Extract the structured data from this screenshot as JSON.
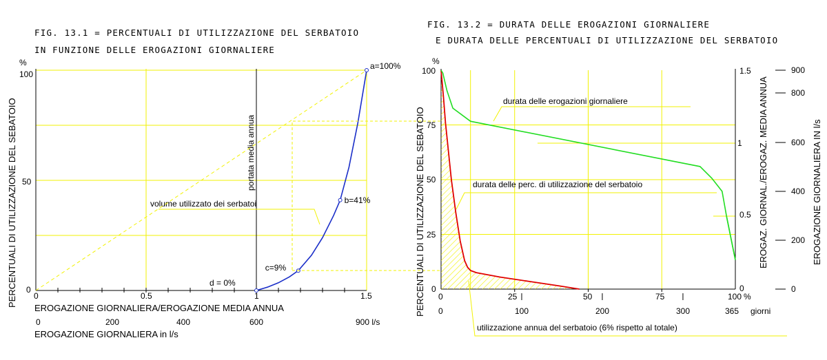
{
  "colors": {
    "grid": "#f2f200",
    "blue": "#1a2ec8",
    "red": "#e00000",
    "green": "#22dd22",
    "axis": "#000000"
  },
  "chart_data": [
    {
      "type": "line",
      "title_line1": "FIG. 13.1 = PERCENTUALI DI UTILIZZAZIONE DEL SERBATOIO",
      "title_line2": "IN FUNZIONE DELLE EROGAZIONI GIORNALIERE",
      "ylabel": "PERCENTUALI DI UTILIZZAZIONE DEL SEBATOIO",
      "y_unit": "%",
      "xlabel": "EROGAZIONE GIORNALIERA/EROGAZIONE MEDIA ANNUA",
      "xlabel2": "EROGAZIONE GIORNALIERA in l/s",
      "xlim": [
        0,
        1.5
      ],
      "ylim": [
        0,
        100
      ],
      "x_ticks": [
        "0",
        "0.5",
        "1",
        "1.5"
      ],
      "x2_ticks": [
        "0",
        "200",
        "400",
        "600",
        "900 l/s"
      ],
      "y_ticks": [
        "0",
        "50",
        "100"
      ],
      "vertical_label": "portata media annua",
      "annotation": "volume utilizzato dei serbatoi",
      "points": [
        {
          "label": "a=100%",
          "x": 1.5,
          "y": 100
        },
        {
          "label": "b=41%",
          "x": 1.38,
          "y": 41
        },
        {
          "label": "c=9%",
          "x": 1.19,
          "y": 9
        },
        {
          "label": "d = 0%",
          "x": 1.0,
          "y": 0
        }
      ],
      "series": [
        {
          "x": [
            1.0,
            1.05,
            1.1,
            1.15,
            1.19,
            1.25,
            1.3,
            1.35,
            1.38,
            1.42,
            1.46,
            1.5
          ],
          "y": [
            0,
            1.5,
            3.5,
            6.2,
            9,
            16,
            24,
            34,
            41,
            56,
            76,
            100
          ]
        },
        {
          "x": [
            0,
            1.5
          ],
          "y": [
            0,
            100
          ]
        }
      ]
    },
    {
      "type": "line",
      "title_line1": "FIG. 13.2 = DURATA DELLE EROGAZIONI GIORNALIERE",
      "title_line2": "E DURATA DELLE PERCENTUALI DI UTILIZZAZIONE DEL SERBATOIO",
      "ylabel": "PERCENTUALI DI UTILIZZAZIONE DEL SEBATOIO",
      "y_unit": "%",
      "ylabel_right1": "EROGAZ. GIORNAL./EROGAZ. MEDIA ANNUA",
      "ylabel_right2": "EROGAZIONE GIORNALIERA IN l/s",
      "xlim": [
        0,
        100
      ],
      "ylim": [
        0,
        100
      ],
      "y_ticks": [
        "0",
        "25",
        "50",
        "75",
        "100"
      ],
      "x_ticks_inner": [
        "0",
        "25",
        "50",
        "75",
        "100"
      ],
      "x_ticks_mid": [
        "0",
        "100",
        "200",
        "300",
        "365"
      ],
      "x_unit_mid": "giorni",
      "x_unit_inner": "%",
      "right1_ticks": [
        "0",
        "0.5",
        "1",
        "1.5"
      ],
      "right2_ticks": [
        "0",
        "200",
        "400",
        "600",
        "800",
        "900"
      ],
      "annotations": [
        "durata delle erogazioni giornaliere",
        "durata delle perc. di utilizzazione del serbatoio",
        "utilizzazione annua del serbatoio (6% rispetto al totale)"
      ],
      "series": [
        {
          "name": "durata delle erogazioni giornaliere",
          "x": [
            0,
            0.6,
            2,
            4,
            10,
            88,
            92,
            95.5,
            97,
            100
          ],
          "y": [
            1.5,
            1.48,
            1.36,
            1.24,
            1.15,
            0.84,
            0.76,
            0.67,
            0.5,
            0.2
          ]
        },
        {
          "name": "durata delle perc. di utilizzazione del serbatoio",
          "x": [
            0,
            0.8,
            1.5,
            2.5,
            3.5,
            5,
            6.5,
            8,
            9,
            10,
            12,
            20,
            30,
            40,
            47
          ],
          "y": [
            100,
            88,
            76,
            63,
            50,
            35,
            22,
            13,
            10,
            8.5,
            7.5,
            5.5,
            3.5,
            1.5,
            0
          ]
        }
      ]
    }
  ]
}
